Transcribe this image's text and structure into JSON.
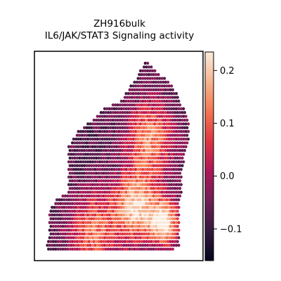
{
  "chart_data": {
    "type": "heatmap",
    "title": "ZH916bulk",
    "subtitle": "IL6/JAK/STAT3 Signaling activity",
    "xlabel": "",
    "ylabel": "",
    "colormap": "rocket",
    "colorbar": {
      "range": [
        -0.16,
        0.235
      ],
      "ticks": [
        0.2,
        0.1,
        0.0,
        -0.1
      ],
      "tick_labels": [
        "0.2",
        "0.1",
        "0.0",
        "−0.1"
      ]
    },
    "color_stops": [
      "#03051a",
      "#35193e",
      "#701f57",
      "#ad1759",
      "#e13342",
      "#f37651",
      "#f6b48f",
      "#faebdd"
    ],
    "grid": false,
    "legend": "none",
    "tissue": {
      "description": "spatial transcriptomics spots; value per spot",
      "row_range": [
        0,
        49
      ],
      "rows": [
        {
          "r": 0,
          "c0": 42,
          "c1": 43
        },
        {
          "r": 2,
          "c0": 40,
          "c1": 46
        },
        {
          "r": 4,
          "c0": 39,
          "c1": 50
        },
        {
          "r": 6,
          "c0": 36,
          "c1": 53
        },
        {
          "r": 8,
          "c0": 34,
          "c1": 55
        },
        {
          "r": 10,
          "c0": 32,
          "c1": 56
        },
        {
          "r": 12,
          "c0": 25,
          "c1": 58
        },
        {
          "r": 14,
          "c0": 22,
          "c1": 59
        },
        {
          "r": 16,
          "c0": 18,
          "c1": 60
        },
        {
          "r": 18,
          "c0": 14,
          "c1": 60
        },
        {
          "r": 20,
          "c0": 12,
          "c1": 60
        },
        {
          "r": 22,
          "c0": 10,
          "c1": 59
        },
        {
          "r": 24,
          "c0": 10,
          "c1": 58
        },
        {
          "r": 26,
          "c0": 10,
          "c1": 58
        },
        {
          "r": 28,
          "c0": 10,
          "c1": 57
        },
        {
          "r": 30,
          "c0": 10,
          "c1": 57
        },
        {
          "r": 32,
          "c0": 10,
          "c1": 57
        },
        {
          "r": 34,
          "c0": 10,
          "c1": 57
        },
        {
          "r": 36,
          "c0": 5,
          "c1": 56
        },
        {
          "r": 38,
          "c0": 3,
          "c1": 56
        },
        {
          "r": 40,
          "c0": 2,
          "c1": 56
        },
        {
          "r": 42,
          "c0": 2,
          "c1": 56
        },
        {
          "r": 44,
          "c0": 2,
          "c1": 56
        },
        {
          "r": 46,
          "c0": 2,
          "c1": 56
        },
        {
          "r": 48,
          "c0": 1,
          "c1": 56
        },
        {
          "r": 49,
          "c0": 1,
          "c1": 54
        }
      ],
      "hot_regions": [
        {
          "col": 44,
          "row": 20,
          "spread": 10,
          "peak": 0.14
        },
        {
          "col": 38,
          "row": 38,
          "spread": 9,
          "peak": 0.2
        },
        {
          "col": 50,
          "row": 42,
          "spread": 6,
          "peak": 0.22
        },
        {
          "col": 20,
          "row": 44,
          "spread": 10,
          "peak": 0.12
        }
      ],
      "baseline": -0.07
    }
  }
}
